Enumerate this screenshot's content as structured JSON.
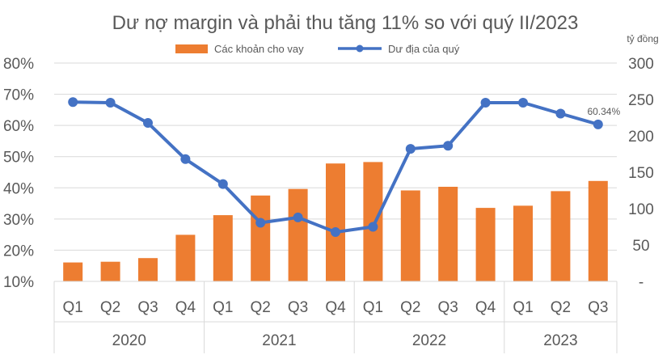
{
  "chart_data": {
    "type": "bar",
    "title": "Dư nợ margin và phải thu tăng 11% so với quý II/2023",
    "right_axis_unit": "tỷ đồng",
    "categories": [
      "Q1",
      "Q2",
      "Q3",
      "Q4",
      "Q1",
      "Q2",
      "Q3",
      "Q4",
      "Q1",
      "Q2",
      "Q3",
      "Q4",
      "Q1",
      "Q2",
      "Q3"
    ],
    "years": [
      {
        "label": "2020",
        "span": 4
      },
      {
        "label": "2021",
        "span": 4
      },
      {
        "label": "2022",
        "span": 4
      },
      {
        "label": "2023",
        "span": 3
      }
    ],
    "series": [
      {
        "name": "Các khoản cho vay",
        "type": "bar",
        "axis": "right",
        "color": "#ED7D31",
        "values": [
          26,
          27,
          32,
          64,
          91,
          118,
          127,
          162,
          164,
          125,
          130,
          101,
          104,
          124,
          138
        ]
      },
      {
        "name": "Dư địa của quý",
        "type": "line",
        "axis": "left",
        "color": "#4472C4",
        "values": [
          67.5,
          67.3,
          60.8,
          49.2,
          41.2,
          28.8,
          30.5,
          25.8,
          27.5,
          52.5,
          53.5,
          67.3,
          67.3,
          63.8,
          60.34
        ]
      }
    ],
    "annotation": {
      "series": "Dư địa của quý",
      "index": 14,
      "text": "60.34%"
    },
    "left_axis": {
      "ylim": [
        0.1,
        0.8
      ],
      "ticks": [
        "10%",
        "20%",
        "30%",
        "40%",
        "50%",
        "60%",
        "70%",
        "80%"
      ]
    },
    "right_axis": {
      "ylim": [
        0,
        300
      ],
      "ticks": [
        "-",
        "50",
        "100",
        "150",
        "200",
        "250",
        "300"
      ]
    },
    "grid": true,
    "legend_position": "top"
  }
}
